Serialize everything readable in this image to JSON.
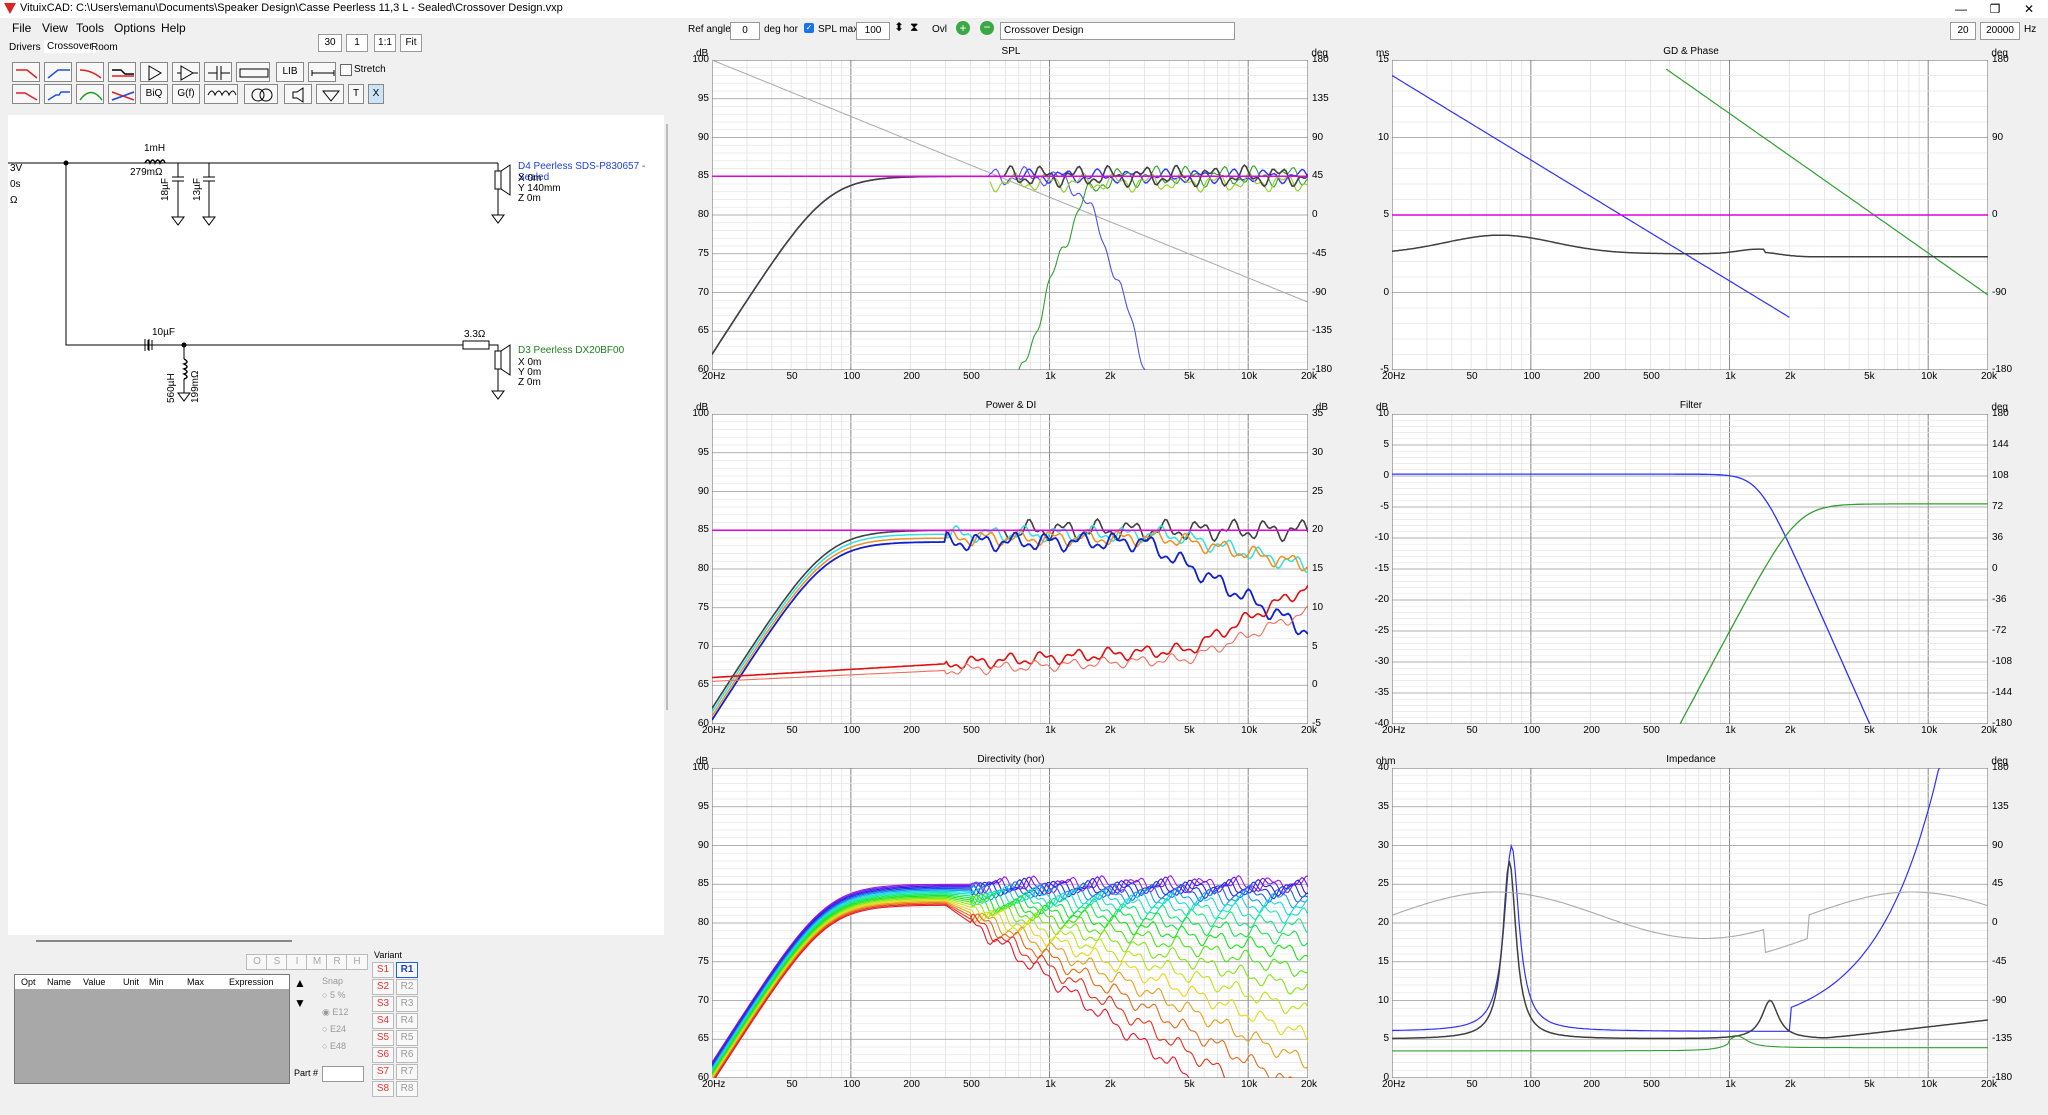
{
  "window": {
    "title": "VituixCAD: C:\\Users\\emanu\\Documents\\Speaker Design\\Casse Peerless 11,3 L - Sealed\\Crossover Design.vxp",
    "minimize": "—",
    "maximize": "❐",
    "close": "✕"
  },
  "menu": [
    "File",
    "View",
    "Tools",
    "Options",
    "Help"
  ],
  "tabs": [
    "Drivers",
    "Crossover",
    "Room"
  ],
  "zoom": {
    "value": "30",
    "step": "1",
    "one_to_one": "1:1",
    "fit": "Fit"
  },
  "tools": {
    "lib": "LIB",
    "biq": "BiQ",
    "gf": "G(f)",
    "t": "T",
    "x": "X",
    "stretch": "Stretch"
  },
  "schematic": {
    "left_labels": [
      "3V",
      "0s",
      "Ω"
    ],
    "inductor1": {
      "value": "1mH",
      "res": "279mΩ"
    },
    "cap1": "18µF",
    "cap2": "13µF",
    "driver1": {
      "name": "D4 Peerless SDS-P830657 - Sealed",
      "x": "X 0m",
      "y": "Y 140mm",
      "z": "Z 0m",
      "color": "#2040e0"
    },
    "cap3": "10µF",
    "ind2": {
      "value": "560µH",
      "res": "199mΩ"
    },
    "res1": "3.3Ω",
    "driver2": {
      "name": "D3 Peerless DX20BF00",
      "x": "X 0m",
      "y": "Y 0m",
      "z": "Z 0m",
      "color": "#208020"
    }
  },
  "opt_table": {
    "headers": [
      "Opt",
      "Name",
      "Value",
      "Unit",
      "Min",
      "Max",
      "Expression"
    ]
  },
  "mode_buttons": [
    "O",
    "S",
    "I",
    "M",
    "R",
    "H"
  ],
  "snap": {
    "label": "Snap",
    "options": [
      "5 %",
      "E12",
      "E24",
      "E48"
    ],
    "selected": "E12"
  },
  "part_label": "Part #",
  "variant": {
    "label": "Variant",
    "s": [
      "S1",
      "S2",
      "S3",
      "S4",
      "S5",
      "S6",
      "S7",
      "S8"
    ],
    "r": [
      "R1",
      "R2",
      "R3",
      "R4",
      "R5",
      "R6",
      "R7",
      "R8"
    ],
    "active": "R1"
  },
  "top_toolbar": {
    "ref_angle_label": "Ref angle",
    "ref_angle": "0",
    "deg_hor": "deg hor",
    "spl_max_label": "SPL max",
    "spl_max": "100",
    "ovl": "Ovl",
    "design_name": "Crossover Design",
    "f_min": "20",
    "f_max": "20000",
    "hz": "Hz"
  },
  "graphs": [
    {
      "id": "spl",
      "title": "SPL",
      "ylabel_left": "dB",
      "ylabel_right": "deg",
      "y_left": [
        "100",
        "95",
        "90",
        "85",
        "80",
        "75",
        "70",
        "65",
        "60"
      ],
      "y_right": [
        "180",
        "135",
        "90",
        "45",
        "0",
        "-45",
        "-90",
        "-135",
        "-180"
      ]
    },
    {
      "id": "gd",
      "title": "GD & Phase",
      "ylabel_left": "ms",
      "ylabel_right": "deg",
      "y_left": [
        "15",
        "10",
        "5",
        "0",
        "-5"
      ],
      "y_right": [
        "180",
        "90",
        "0",
        "-90",
        "-180"
      ]
    },
    {
      "id": "pdi",
      "title": "Power & DI",
      "ylabel_left": "dB",
      "ylabel_right": "dB",
      "y_left": [
        "100",
        "95",
        "90",
        "85",
        "80",
        "75",
        "70",
        "65",
        "60"
      ],
      "y_right": [
        "35",
        "30",
        "25",
        "20",
        "15",
        "10",
        "5",
        "0",
        "-5"
      ]
    },
    {
      "id": "filter",
      "title": "Filter",
      "ylabel_left": "dB",
      "ylabel_right": "deg",
      "y_left": [
        "10",
        "5",
        "0",
        "-5",
        "-10",
        "-15",
        "-20",
        "-25",
        "-30",
        "-35",
        "-40"
      ],
      "y_right": [
        "180",
        "144",
        "108",
        "72",
        "36",
        "0",
        "-36",
        "-72",
        "-108",
        "-144",
        "-180"
      ]
    },
    {
      "id": "dir",
      "title": "Directivity (hor)",
      "ylabel_left": "dB",
      "ylabel_right": "",
      "y_left": [
        "100",
        "95",
        "90",
        "85",
        "80",
        "75",
        "70",
        "65",
        "60"
      ],
      "y_right": []
    },
    {
      "id": "imp",
      "title": "Impedance",
      "ylabel_left": "ohm",
      "ylabel_right": "deg",
      "y_left": [
        "40",
        "35",
        "30",
        "25",
        "20",
        "15",
        "10",
        "5",
        "0"
      ],
      "y_right": [
        "180",
        "135",
        "90",
        "45",
        "0",
        "-45",
        "-90",
        "-135",
        "-180"
      ]
    }
  ],
  "x_ticks": [
    "20Hz",
    "50",
    "100",
    "200",
    "500",
    "1k",
    "2k",
    "5k",
    "10k",
    "20k"
  ],
  "colors": {
    "accent": "#e000e0",
    "woofer": "#3030ff",
    "tweeter": "#30a030",
    "sum": "#404040"
  }
}
